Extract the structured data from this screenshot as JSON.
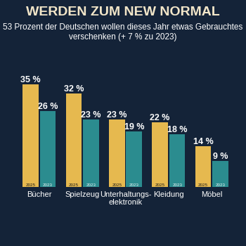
{
  "chart_data": {
    "type": "bar",
    "title": "WERDEN ZUM NEW NORMAL",
    "subtitle": "53 Prozent der Deutschen wollen dieses Jahr etwas Gebrauchtes verschenken (+ 7 % zu 2023)",
    "categories": [
      "Bücher",
      "Spielzeug",
      "Unterhaltungs-\nelektronik",
      "Kleidung",
      "Möbel"
    ],
    "series": [
      {
        "name": "2025",
        "color": "#e6b94f",
        "values": [
          35,
          32,
          23,
          22,
          14
        ],
        "value_labels": [
          "35 %",
          "32 %",
          "23 %",
          "22 %",
          "14 %"
        ]
      },
      {
        "name": "2023",
        "color": "#2b8c8f",
        "values": [
          26,
          23,
          19,
          18,
          9
        ],
        "value_labels": [
          "26 %",
          "23 %",
          "19 %",
          "18 %",
          "9 %"
        ]
      }
    ],
    "data_labels": true,
    "tick_labels": "x",
    "grid": false
  }
}
